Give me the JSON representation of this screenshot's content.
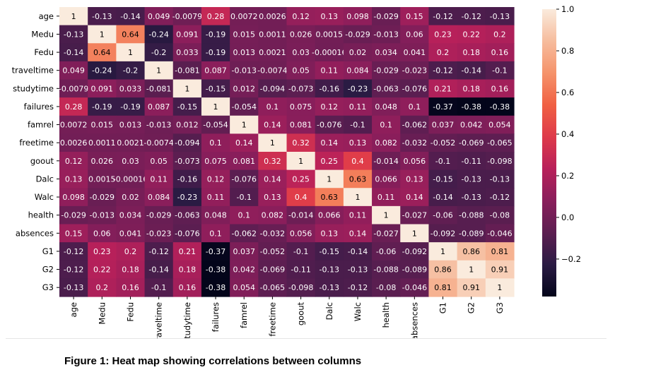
{
  "caption": "Figure 1: Heat map showing correlations between columns",
  "chart_data": {
    "type": "heatmap",
    "variables": [
      "age",
      "Medu",
      "Fedu",
      "traveltime",
      "studytime",
      "failures",
      "famrel",
      "freetime",
      "goout",
      "Dalc",
      "Walc",
      "health",
      "absences",
      "G1",
      "G2",
      "G3"
    ],
    "cells": [
      [
        "1",
        "-0.13",
        "-0.14",
        "0.049",
        "-0.0079",
        "0.28",
        "0.0072",
        "0.0026",
        "0.12",
        "0.13",
        "0.098",
        "-0.029",
        "0.15",
        "-0.12",
        "-0.12",
        "-0.13"
      ],
      [
        "-0.13",
        "1",
        "0.64",
        "-0.24",
        "0.091",
        "-0.19",
        "0.015",
        "0.0011",
        "0.026",
        "0.0015",
        "-0.029",
        "-0.013",
        "0.06",
        "0.23",
        "0.22",
        "0.2"
      ],
      [
        "-0.14",
        "0.64",
        "1",
        "-0.2",
        "0.033",
        "-0.19",
        "0.013",
        "0.0021",
        "0.03",
        "-0.00016",
        "0.02",
        "0.034",
        "0.041",
        "0.2",
        "0.18",
        "0.16"
      ],
      [
        "0.049",
        "-0.24",
        "-0.2",
        "1",
        "-0.081",
        "0.087",
        "-0.013",
        "-0.0074",
        "0.05",
        "0.11",
        "0.084",
        "-0.029",
        "-0.023",
        "-0.12",
        "-0.14",
        "-0.1"
      ],
      [
        "-0.0079",
        "0.091",
        "0.033",
        "-0.081",
        "1",
        "-0.15",
        "0.012",
        "-0.094",
        "-0.073",
        "-0.16",
        "-0.23",
        "-0.063",
        "-0.076",
        "0.21",
        "0.18",
        "0.16"
      ],
      [
        "0.28",
        "-0.19",
        "-0.19",
        "0.087",
        "-0.15",
        "1",
        "-0.054",
        "0.1",
        "0.075",
        "0.12",
        "0.11",
        "0.048",
        "0.1",
        "-0.37",
        "-0.38",
        "-0.38"
      ],
      [
        "0.0072",
        "0.015",
        "0.013",
        "-0.013",
        "0.012",
        "-0.054",
        "1",
        "0.14",
        "0.081",
        "-0.076",
        "-0.1",
        "0.1",
        "-0.062",
        "0.037",
        "0.042",
        "0.054"
      ],
      [
        "0.0026",
        "0.0011",
        "0.0021",
        "-0.0074",
        "-0.094",
        "0.1",
        "0.14",
        "1",
        "0.32",
        "0.14",
        "0.13",
        "0.082",
        "-0.032",
        "-0.052",
        "-0.069",
        "-0.065"
      ],
      [
        "0.12",
        "0.026",
        "0.03",
        "0.05",
        "-0.073",
        "0.075",
        "0.081",
        "0.32",
        "1",
        "0.25",
        "0.4",
        "-0.014",
        "0.056",
        "-0.1",
        "-0.11",
        "-0.098"
      ],
      [
        "0.13",
        "0.0015",
        "-0.00016",
        "0.11",
        "-0.16",
        "0.12",
        "-0.076",
        "0.14",
        "0.25",
        "1",
        "0.63",
        "0.066",
        "0.13",
        "-0.15",
        "-0.13",
        "-0.13"
      ],
      [
        "0.098",
        "-0.029",
        "0.02",
        "0.084",
        "-0.23",
        "0.11",
        "-0.1",
        "0.13",
        "0.4",
        "0.63",
        "1",
        "0.11",
        "0.14",
        "-0.14",
        "-0.13",
        "-0.12"
      ],
      [
        "-0.029",
        "-0.013",
        "0.034",
        "-0.029",
        "-0.063",
        "0.048",
        "0.1",
        "0.082",
        "-0.014",
        "0.066",
        "0.11",
        "1",
        "-0.027",
        "-0.06",
        "-0.088",
        "-0.08"
      ],
      [
        "0.15",
        "0.06",
        "0.041",
        "-0.023",
        "-0.076",
        "0.1",
        "-0.062",
        "-0.032",
        "0.056",
        "0.13",
        "0.14",
        "-0.027",
        "1",
        "-0.092",
        "-0.089",
        "-0.046"
      ],
      [
        "-0.12",
        "0.23",
        "0.2",
        "-0.12",
        "0.21",
        "-0.37",
        "0.037",
        "-0.052",
        "-0.1",
        "-0.15",
        "-0.14",
        "-0.06",
        "-0.092",
        "1",
        "0.86",
        "0.81"
      ],
      [
        "-0.12",
        "0.22",
        "0.18",
        "-0.14",
        "0.18",
        "-0.38",
        "0.042",
        "-0.069",
        "-0.11",
        "-0.13",
        "-0.13",
        "-0.088",
        "-0.089",
        "0.86",
        "1",
        "0.91"
      ],
      [
        "-0.13",
        "0.2",
        "0.16",
        "-0.1",
        "0.16",
        "-0.38",
        "0.054",
        "-0.065",
        "-0.098",
        "-0.13",
        "-0.12",
        "-0.08",
        "-0.046",
        "0.81",
        "0.91",
        "1"
      ]
    ],
    "colorbar": {
      "min": -0.38,
      "max": 1.0,
      "ticks": [
        "1.0",
        "0.8",
        "0.6",
        "0.4",
        "0.2",
        "0.0",
        "−0.2"
      ],
      "tick_values": [
        1.0,
        0.8,
        0.6,
        0.4,
        0.2,
        0.0,
        -0.2
      ]
    },
    "colormap": "rocket",
    "colormap_stops": [
      "#03051a",
      "#2b1b44",
      "#5c1e51",
      "#891e5b",
      "#b8205a",
      "#de3a4a",
      "#f06043",
      "#f5936b",
      "#f6bc9d",
      "#faebdd"
    ],
    "annotations": true,
    "title": "",
    "xlabel": "",
    "ylabel": ""
  }
}
